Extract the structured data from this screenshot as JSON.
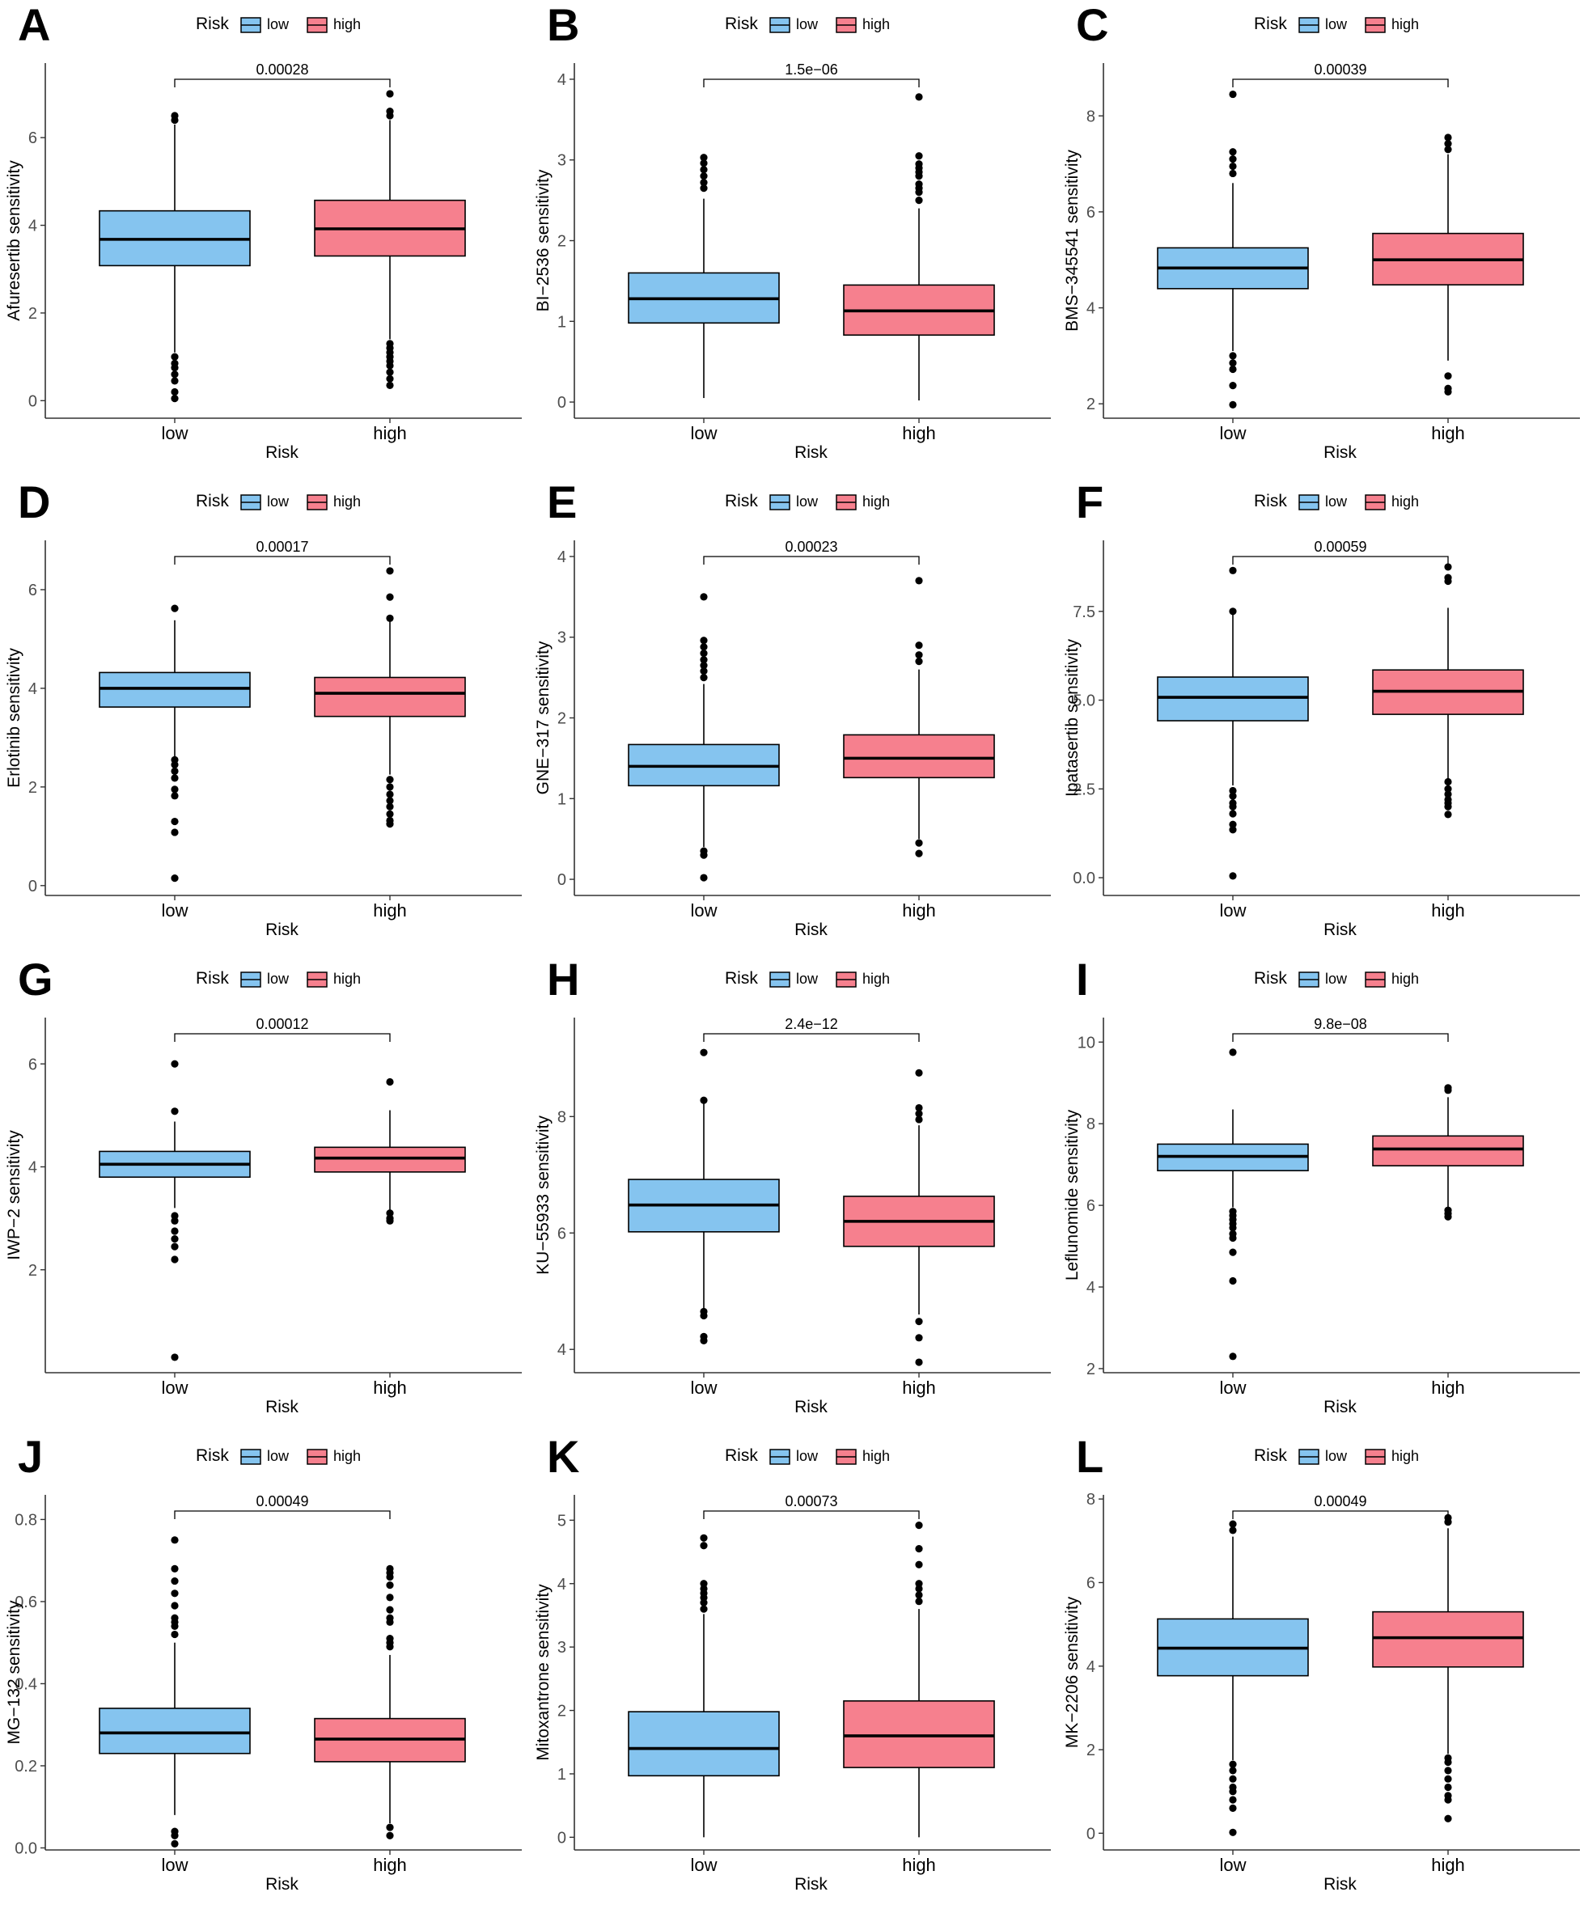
{
  "legend": {
    "title": "Risk",
    "low_label": "low",
    "high_label": "high"
  },
  "colors": {
    "low": "#85C4EF",
    "high": "#F6808E",
    "line": "#000000",
    "axis": "#333333"
  },
  "chart_data": [
    {
      "type": "box",
      "letter": "A",
      "xlabel": "Risk",
      "ylabel": "Afuresertib sensitivity",
      "categories": [
        "low",
        "high"
      ],
      "pvalue": "0.00028",
      "ylim": [
        -0.4,
        7.7
      ],
      "yticks": [
        0,
        2,
        4,
        6
      ],
      "series": [
        {
          "name": "low",
          "q1": 3.08,
          "median": 3.68,
          "q3": 4.33,
          "whisker_low": 1.1,
          "whisker_high": 6.3,
          "outliers": [
            0.05,
            0.2,
            0.45,
            0.6,
            0.75,
            0.85,
            1.0,
            6.4,
            6.5
          ]
        },
        {
          "name": "high",
          "q1": 3.3,
          "median": 3.92,
          "q3": 4.57,
          "whisker_low": 1.4,
          "whisker_high": 6.4,
          "outliers": [
            0.35,
            0.5,
            0.65,
            0.8,
            0.9,
            1.0,
            1.1,
            1.2,
            1.3,
            6.5,
            6.6,
            7.0
          ]
        }
      ]
    },
    {
      "type": "box",
      "letter": "B",
      "xlabel": "Risk",
      "ylabel": "BI−2536 sensitivity",
      "categories": [
        "low",
        "high"
      ],
      "pvalue": "1.5e−06",
      "ylim": [
        -0.2,
        4.2
      ],
      "yticks": [
        0,
        1,
        2,
        3,
        4
      ],
      "series": [
        {
          "name": "low",
          "q1": 0.98,
          "median": 1.28,
          "q3": 1.6,
          "whisker_low": 0.05,
          "whisker_high": 2.52,
          "outliers": [
            2.65,
            2.72,
            2.8,
            2.88,
            2.96,
            3.03
          ]
        },
        {
          "name": "high",
          "q1": 0.83,
          "median": 1.13,
          "q3": 1.45,
          "whisker_low": 0.02,
          "whisker_high": 2.4,
          "outliers": [
            2.5,
            2.6,
            2.65,
            2.7,
            2.8,
            2.85,
            2.9,
            2.95,
            3.05,
            3.78
          ]
        }
      ]
    },
    {
      "type": "box",
      "letter": "C",
      "xlabel": "Risk",
      "ylabel": "BMS−345541 sensitivity",
      "categories": [
        "low",
        "high"
      ],
      "pvalue": "0.00039",
      "ylim": [
        1.7,
        9.1
      ],
      "yticks": [
        2,
        4,
        6,
        8
      ],
      "series": [
        {
          "name": "low",
          "q1": 4.4,
          "median": 4.83,
          "q3": 5.25,
          "whisker_low": 3.1,
          "whisker_high": 6.6,
          "outliers": [
            1.98,
            2.38,
            2.72,
            2.85,
            3.0,
            6.8,
            6.95,
            7.1,
            7.25,
            8.45
          ]
        },
        {
          "name": "high",
          "q1": 4.48,
          "median": 5.0,
          "q3": 5.55,
          "whisker_low": 2.9,
          "whisker_high": 7.2,
          "outliers": [
            2.25,
            2.32,
            2.58,
            7.3,
            7.42,
            7.55
          ]
        }
      ]
    },
    {
      "type": "box",
      "letter": "D",
      "xlabel": "Risk",
      "ylabel": "Erlotinib sensitivity",
      "categories": [
        "low",
        "high"
      ],
      "pvalue": "0.00017",
      "ylim": [
        -0.2,
        7.0
      ],
      "yticks": [
        0,
        2,
        4,
        6
      ],
      "series": [
        {
          "name": "low",
          "q1": 3.62,
          "median": 4.0,
          "q3": 4.32,
          "whisker_low": 2.6,
          "whisker_high": 5.38,
          "outliers": [
            0.15,
            1.08,
            1.3,
            1.82,
            1.95,
            2.18,
            2.32,
            2.45,
            2.55,
            5.62
          ]
        },
        {
          "name": "high",
          "q1": 3.43,
          "median": 3.9,
          "q3": 4.22,
          "whisker_low": 2.25,
          "whisker_high": 5.4,
          "outliers": [
            1.25,
            1.32,
            1.45,
            1.6,
            1.72,
            1.85,
            2.0,
            2.15,
            5.42,
            5.85,
            6.38
          ]
        }
      ]
    },
    {
      "type": "box",
      "letter": "E",
      "xlabel": "Risk",
      "ylabel": "GNE−317 sensitivity",
      "categories": [
        "low",
        "high"
      ],
      "pvalue": "0.00023",
      "ylim": [
        -0.2,
        4.2
      ],
      "yticks": [
        0,
        1,
        2,
        3,
        4
      ],
      "series": [
        {
          "name": "low",
          "q1": 1.16,
          "median": 1.4,
          "q3": 1.67,
          "whisker_low": 0.4,
          "whisker_high": 2.42,
          "outliers": [
            0.02,
            0.3,
            0.35,
            2.5,
            2.58,
            2.65,
            2.72,
            2.8,
            2.88,
            2.96,
            3.5
          ]
        },
        {
          "name": "high",
          "q1": 1.26,
          "median": 1.5,
          "q3": 1.79,
          "whisker_low": 0.5,
          "whisker_high": 2.6,
          "outliers": [
            0.32,
            0.45,
            2.7,
            2.78,
            2.9,
            3.7
          ]
        }
      ]
    },
    {
      "type": "box",
      "letter": "F",
      "xlabel": "Risk",
      "ylabel": "Ipatasertib sensitivity",
      "categories": [
        "low",
        "high"
      ],
      "pvalue": "0.00059",
      "ylim": [
        -0.5,
        9.5
      ],
      "yticks": [
        0.0,
        2.5,
        5.0,
        7.5
      ],
      "series": [
        {
          "name": "low",
          "q1": 4.42,
          "median": 5.08,
          "q3": 5.65,
          "whisker_low": 2.6,
          "whisker_high": 7.42,
          "outliers": [
            0.05,
            1.35,
            1.5,
            1.8,
            2.0,
            2.1,
            2.3,
            2.45,
            7.5,
            8.65
          ]
        },
        {
          "name": "high",
          "q1": 4.6,
          "median": 5.25,
          "q3": 5.85,
          "whisker_low": 2.75,
          "whisker_high": 7.6,
          "outliers": [
            1.78,
            2.0,
            2.1,
            2.2,
            2.35,
            2.5,
            2.7,
            8.35,
            8.45,
            8.75
          ]
        }
      ]
    },
    {
      "type": "box",
      "letter": "G",
      "xlabel": "Risk",
      "ylabel": "IWP−2 sensitivity",
      "categories": [
        "low",
        "high"
      ],
      "pvalue": "0.00012",
      "ylim": [
        0.0,
        6.9
      ],
      "yticks": [
        2,
        4,
        6
      ],
      "series": [
        {
          "name": "low",
          "q1": 3.8,
          "median": 4.05,
          "q3": 4.3,
          "whisker_low": 3.2,
          "whisker_high": 4.88,
          "outliers": [
            0.3,
            2.2,
            2.45,
            2.6,
            2.75,
            2.95,
            3.05,
            5.08,
            6.0
          ]
        },
        {
          "name": "high",
          "q1": 3.9,
          "median": 4.17,
          "q3": 4.38,
          "whisker_low": 3.15,
          "whisker_high": 5.1,
          "outliers": [
            2.95,
            3.0,
            3.1,
            5.65
          ]
        }
      ]
    },
    {
      "type": "box",
      "letter": "H",
      "xlabel": "Risk",
      "ylabel": "KU−55933 sensitivity",
      "categories": [
        "low",
        "high"
      ],
      "pvalue": "2.4e−12",
      "ylim": [
        3.6,
        9.7
      ],
      "yticks": [
        4,
        6,
        8
      ],
      "series": [
        {
          "name": "low",
          "q1": 6.02,
          "median": 6.48,
          "q3": 6.92,
          "whisker_low": 4.7,
          "whisker_high": 8.22,
          "outliers": [
            4.15,
            4.22,
            4.58,
            4.65,
            8.28,
            9.1
          ]
        },
        {
          "name": "high",
          "q1": 5.77,
          "median": 6.2,
          "q3": 6.63,
          "whisker_low": 4.6,
          "whisker_high": 7.85,
          "outliers": [
            3.78,
            4.2,
            4.48,
            7.95,
            8.05,
            8.15,
            8.75
          ]
        }
      ]
    },
    {
      "type": "box",
      "letter": "I",
      "xlabel": "Risk",
      "ylabel": "Leflunomide sensitivity",
      "categories": [
        "low",
        "high"
      ],
      "pvalue": "9.8e−08",
      "ylim": [
        1.9,
        10.6
      ],
      "yticks": [
        2,
        4,
        6,
        8,
        10
      ],
      "series": [
        {
          "name": "low",
          "q1": 6.85,
          "median": 7.2,
          "q3": 7.5,
          "whisker_low": 5.95,
          "whisker_high": 8.35,
          "outliers": [
            2.3,
            4.15,
            4.85,
            5.2,
            5.3,
            5.45,
            5.55,
            5.65,
            5.75,
            5.85,
            9.75
          ]
        },
        {
          "name": "high",
          "q1": 6.97,
          "median": 7.38,
          "q3": 7.7,
          "whisker_low": 5.95,
          "whisker_high": 8.65,
          "outliers": [
            5.72,
            5.8,
            5.88,
            8.82,
            8.88
          ]
        }
      ]
    },
    {
      "type": "box",
      "letter": "J",
      "xlabel": "Risk",
      "ylabel": "MG−132 sensitivity",
      "categories": [
        "low",
        "high"
      ],
      "pvalue": "0.00049",
      "ylim": [
        -0.005,
        0.86
      ],
      "yticks": [
        0.0,
        0.2,
        0.4,
        0.6,
        0.8
      ],
      "series": [
        {
          "name": "low",
          "q1": 0.23,
          "median": 0.28,
          "q3": 0.34,
          "whisker_low": 0.08,
          "whisker_high": 0.5,
          "outliers": [
            0.01,
            0.03,
            0.04,
            0.52,
            0.54,
            0.55,
            0.56,
            0.59,
            0.62,
            0.65,
            0.68,
            0.75
          ]
        },
        {
          "name": "high",
          "q1": 0.21,
          "median": 0.265,
          "q3": 0.315,
          "whisker_low": 0.06,
          "whisker_high": 0.47,
          "outliers": [
            0.03,
            0.05,
            0.49,
            0.5,
            0.51,
            0.55,
            0.56,
            0.58,
            0.61,
            0.64,
            0.66,
            0.67,
            0.68
          ]
        }
      ]
    },
    {
      "type": "box",
      "letter": "K",
      "xlabel": "Risk",
      "ylabel": "Mitoxantrone sensitivity",
      "categories": [
        "low",
        "high"
      ],
      "pvalue": "0.00073",
      "ylim": [
        -0.2,
        5.4
      ],
      "yticks": [
        0,
        1,
        2,
        3,
        4,
        5
      ],
      "series": [
        {
          "name": "low",
          "q1": 0.97,
          "median": 1.4,
          "q3": 1.98,
          "whisker_low": 0.0,
          "whisker_high": 3.52,
          "outliers": [
            3.6,
            3.7,
            3.78,
            3.85,
            3.92,
            4.0,
            4.6,
            4.72
          ]
        },
        {
          "name": "high",
          "q1": 1.1,
          "median": 1.6,
          "q3": 2.15,
          "whisker_low": 0.0,
          "whisker_high": 3.6,
          "outliers": [
            3.72,
            3.82,
            3.92,
            4.0,
            4.3,
            4.55,
            4.92
          ]
        }
      ]
    },
    {
      "type": "box",
      "letter": "L",
      "xlabel": "Risk",
      "ylabel": "MK−2206 sensitivity",
      "categories": [
        "low",
        "high"
      ],
      "pvalue": "0.00049",
      "ylim": [
        -0.4,
        8.1
      ],
      "yticks": [
        0,
        2,
        4,
        6,
        8
      ],
      "series": [
        {
          "name": "low",
          "q1": 3.77,
          "median": 4.43,
          "q3": 5.13,
          "whisker_low": 1.75,
          "whisker_high": 7.1,
          "outliers": [
            0.02,
            0.6,
            0.8,
            1.0,
            1.1,
            1.3,
            1.5,
            1.65,
            7.25,
            7.4
          ]
        },
        {
          "name": "high",
          "q1": 3.98,
          "median": 4.68,
          "q3": 5.3,
          "whisker_low": 1.9,
          "whisker_high": 7.3,
          "outliers": [
            0.35,
            0.8,
            0.9,
            1.1,
            1.3,
            1.5,
            1.7,
            1.8,
            7.45,
            7.55
          ]
        }
      ]
    }
  ]
}
